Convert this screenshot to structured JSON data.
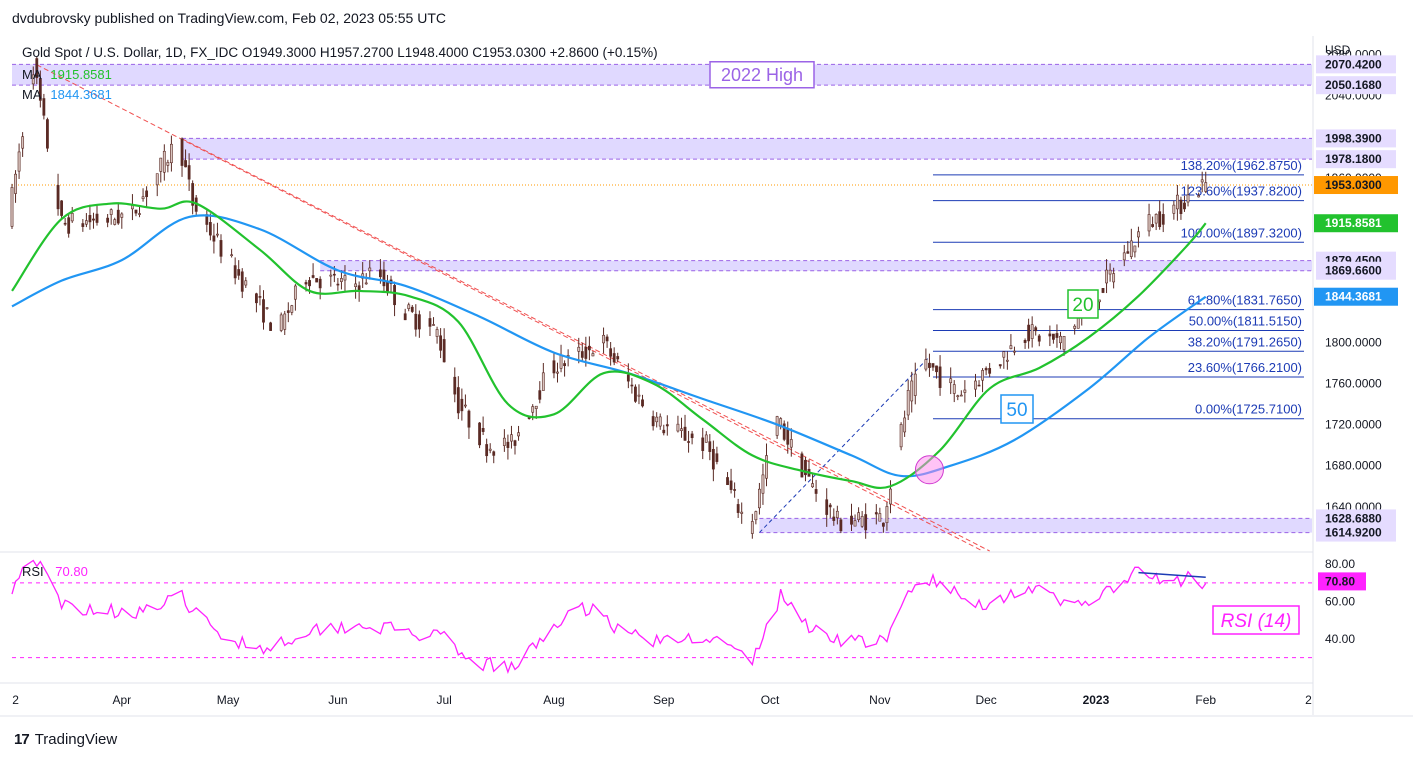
{
  "publisher_line": "dvdubrovsky published on TradingView.com, Feb 02, 2023 05:55 UTC",
  "symbol_line": "Gold Spot / U.S. Dollar, 1D, FX_IDC  O1949.3000  H1957.2700  L1948.4000  C1953.0300  +2.8600 (+0.15%)",
  "logo_text": "TradingView",
  "colors": {
    "ma20": "#22c22e",
    "ma50": "#2196f3",
    "rsi": "#ff22ff",
    "candle_up": "#d9c4bf",
    "candle_down": "#5a2a24",
    "zone": "#d6ccff",
    "zone_label": "#9b63e6",
    "fib": "#1c3bb5",
    "trend": "#f05050",
    "price": "#ff9800"
  },
  "legend": {
    "ma1_label": "MA",
    "ma1_value": "1915.8581",
    "ma2_label": "MA",
    "ma2_value": "1844.3681",
    "rsi_label": "RSI",
    "rsi_value": "70.80"
  },
  "annotations": {
    "zone_2022_high": "2022 High",
    "ma20_tag": "20",
    "ma50_tag": "50",
    "rsi_tag": "RSI (14)"
  },
  "chart_data": {
    "type": "candlestick",
    "price_axis_title": "USD",
    "price_ticks": [
      "1640.0000",
      "1680.0000",
      "1720.0000",
      "1760.0000",
      "1800.0000",
      "1840.0000",
      "1880.0000",
      "1920.0000",
      "1960.0000",
      "2000.0000",
      "2040.0000",
      "2080.0000"
    ],
    "price_range": [
      1597,
      2098
    ],
    "date_range": [
      "2022-03-01",
      "2023-03-03"
    ],
    "date_ticks": [
      {
        "label": "2",
        "date": "2022-03-02"
      },
      {
        "label": "Apr",
        "date": "2022-04-01"
      },
      {
        "label": "May",
        "date": "2022-05-01"
      },
      {
        "label": "Jun",
        "date": "2022-06-01"
      },
      {
        "label": "Jul",
        "date": "2022-07-01"
      },
      {
        "label": "Aug",
        "date": "2022-08-01"
      },
      {
        "label": "Sep",
        "date": "2022-09-01"
      },
      {
        "label": "Oct",
        "date": "2022-10-01"
      },
      {
        "label": "Nov",
        "date": "2022-11-01"
      },
      {
        "label": "Dec",
        "date": "2022-12-01"
      },
      {
        "label": "2023",
        "date": "2023-01-01"
      },
      {
        "label": "Feb",
        "date": "2023-02-01"
      },
      {
        "label": "2",
        "date": "2023-03-02"
      }
    ],
    "price_path": [
      [
        "2022-03-01",
        1920
      ],
      [
        "2022-03-08",
        2070
      ],
      [
        "2022-03-16",
        1915
      ],
      [
        "2022-03-29",
        1920
      ],
      [
        "2022-04-05",
        1925
      ],
      [
        "2022-04-18",
        1998
      ],
      [
        "2022-04-22",
        1935
      ],
      [
        "2022-05-04",
        1870
      ],
      [
        "2022-05-16",
        1810
      ],
      [
        "2022-05-24",
        1865
      ],
      [
        "2022-06-06",
        1855
      ],
      [
        "2022-06-13",
        1870
      ],
      [
        "2022-06-21",
        1830
      ],
      [
        "2022-06-30",
        1810
      ],
      [
        "2022-07-06",
        1740
      ],
      [
        "2022-07-14",
        1700
      ],
      [
        "2022-07-21",
        1700
      ],
      [
        "2022-08-01",
        1775
      ],
      [
        "2022-08-10",
        1790
      ],
      [
        "2022-08-16",
        1800
      ],
      [
        "2022-08-25",
        1750
      ],
      [
        "2022-09-01",
        1720
      ],
      [
        "2022-09-14",
        1700
      ],
      [
        "2022-09-26",
        1620
      ],
      [
        "2022-09-28",
        1640
      ],
      [
        "2022-10-04",
        1725
      ],
      [
        "2022-10-13",
        1665
      ],
      [
        "2022-10-21",
        1625
      ],
      [
        "2022-11-03",
        1630
      ],
      [
        "2022-11-10",
        1745
      ],
      [
        "2022-11-15",
        1780
      ],
      [
        "2022-11-24",
        1750
      ],
      [
        "2022-12-05",
        1780
      ],
      [
        "2022-12-13",
        1810
      ],
      [
        "2022-12-23",
        1800
      ],
      [
        "2023-01-03",
        1850
      ],
      [
        "2023-01-16",
        1915
      ],
      [
        "2023-01-26",
        1935
      ],
      [
        "2023-02-01",
        1953
      ]
    ],
    "last_close": 1953.03,
    "ma_series": [
      {
        "name": "MA",
        "period": 20,
        "last": 1915.8581,
        "points": [
          [
            "2022-03-01",
            1850
          ],
          [
            "2022-03-15",
            1920
          ],
          [
            "2022-03-29",
            1935
          ],
          [
            "2022-04-12",
            1930
          ],
          [
            "2022-04-22",
            1935
          ],
          [
            "2022-05-10",
            1890
          ],
          [
            "2022-05-24",
            1850
          ],
          [
            "2022-06-07",
            1850
          ],
          [
            "2022-06-21",
            1845
          ],
          [
            "2022-07-05",
            1820
          ],
          [
            "2022-07-19",
            1740
          ],
          [
            "2022-08-01",
            1730
          ],
          [
            "2022-08-15",
            1770
          ],
          [
            "2022-08-29",
            1760
          ],
          [
            "2022-09-12",
            1725
          ],
          [
            "2022-09-26",
            1690
          ],
          [
            "2022-10-10",
            1675
          ],
          [
            "2022-10-24",
            1665
          ],
          [
            "2022-11-04",
            1660
          ],
          [
            "2022-11-18",
            1695
          ],
          [
            "2022-12-02",
            1755
          ],
          [
            "2022-12-16",
            1775
          ],
          [
            "2022-12-30",
            1805
          ],
          [
            "2023-01-13",
            1845
          ],
          [
            "2023-01-27",
            1895
          ],
          [
            "2023-02-01",
            1915.86
          ]
        ]
      },
      {
        "name": "MA",
        "period": 50,
        "last": 1844.3681,
        "points": [
          [
            "2022-03-01",
            1835
          ],
          [
            "2022-03-15",
            1860
          ],
          [
            "2022-04-01",
            1880
          ],
          [
            "2022-04-20",
            1922
          ],
          [
            "2022-05-10",
            1910
          ],
          [
            "2022-06-01",
            1870
          ],
          [
            "2022-06-20",
            1855
          ],
          [
            "2022-07-11",
            1825
          ],
          [
            "2022-08-01",
            1790
          ],
          [
            "2022-08-22",
            1770
          ],
          [
            "2022-09-12",
            1745
          ],
          [
            "2022-10-03",
            1720
          ],
          [
            "2022-10-24",
            1690
          ],
          [
            "2022-11-07",
            1670
          ],
          [
            "2022-11-21",
            1680
          ],
          [
            "2022-12-09",
            1705
          ],
          [
            "2022-12-30",
            1755
          ],
          [
            "2023-01-16",
            1805
          ],
          [
            "2023-02-01",
            1844.37
          ]
        ]
      }
    ],
    "zones": [
      {
        "from": 2050.168,
        "to": 2070.42,
        "label": "2022 High"
      },
      {
        "from": 1978.18,
        "to": 1998.39
      },
      {
        "from": 1869.66,
        "to": 1879.45
      },
      {
        "from": 1614.92,
        "to": 1628.688
      }
    ],
    "zone_levels": [
      "2070.4200",
      "2050.1680",
      "1998.3900",
      "1978.1800",
      "1879.4500",
      "1869.6600",
      "1628.6880",
      "1614.9200"
    ],
    "fibonacci": [
      {
        "label": "138.20%(1962.8750)",
        "value": 1962.875
      },
      {
        "label": "123.60%(1937.8200)",
        "value": 1937.82
      },
      {
        "label": "100.00%(1897.3200)",
        "value": 1897.32
      },
      {
        "label": "61.80%(1831.7650)",
        "value": 1831.765
      },
      {
        "label": "50.00%(1811.5150)",
        "value": 1811.515
      },
      {
        "label": "38.20%(1791.2650)",
        "value": 1791.265
      },
      {
        "label": "23.60%(1766.2100)",
        "value": 1766.21
      },
      {
        "label": "0.00%(1725.7100)",
        "value": 1725.71
      }
    ],
    "fib_anchor": [
      [
        "2022-09-28",
        1614.92
      ],
      [
        "2022-11-15",
        1786
      ]
    ],
    "trendlines": [
      [
        [
          "2022-03-08",
          2070
        ],
        [
          "2022-11-30",
          1597
        ]
      ],
      [
        [
          "2022-04-18",
          1998
        ],
        [
          "2022-12-02",
          1597
        ]
      ]
    ],
    "price_labels": [
      {
        "value": 1953.03,
        "text": "1953.0300",
        "style": "orange"
      },
      {
        "value": 1915.8581,
        "text": "1915.8581",
        "style": "green"
      },
      {
        "value": 1844.3681,
        "text": "1844.3681",
        "style": "blue"
      }
    ],
    "rsi": {
      "period": 14,
      "last": 70.8,
      "range": [
        18,
        86
      ],
      "ticks": [
        "40.00",
        "60.00",
        "80.00"
      ],
      "upper": 70,
      "lower": 30,
      "label": "70.80",
      "divergence": [
        [
          "2023-01-13",
          75.5
        ],
        [
          "2023-02-01",
          73
        ]
      ],
      "points": [
        [
          "2022-03-01",
          68
        ],
        [
          "2022-03-07",
          85
        ],
        [
          "2022-03-15",
          58
        ],
        [
          "2022-03-29",
          55
        ],
        [
          "2022-04-08",
          55
        ],
        [
          "2022-04-18",
          62
        ],
        [
          "2022-04-28",
          42
        ],
        [
          "2022-05-12",
          35
        ],
        [
          "2022-05-24",
          45
        ],
        [
          "2022-06-07",
          48
        ],
        [
          "2022-06-17",
          45
        ],
        [
          "2022-07-01",
          40
        ],
        [
          "2022-07-07",
          28
        ],
        [
          "2022-07-21",
          24
        ],
        [
          "2022-08-01",
          48
        ],
        [
          "2022-08-12",
          58
        ],
        [
          "2022-08-19",
          45
        ],
        [
          "2022-09-01",
          38
        ],
        [
          "2022-09-13",
          42
        ],
        [
          "2022-09-26",
          28
        ],
        [
          "2022-10-04",
          63
        ],
        [
          "2022-10-13",
          45
        ],
        [
          "2022-10-21",
          40
        ],
        [
          "2022-11-03",
          38
        ],
        [
          "2022-11-09",
          65
        ],
        [
          "2022-11-15",
          72
        ],
        [
          "2022-11-28",
          58
        ],
        [
          "2022-12-05",
          62
        ],
        [
          "2022-12-13",
          68
        ],
        [
          "2022-12-23",
          58
        ],
        [
          "2023-01-03",
          63
        ],
        [
          "2023-01-13",
          76
        ],
        [
          "2023-01-20",
          70
        ],
        [
          "2023-01-27",
          72
        ],
        [
          "2023-01-31",
          65
        ],
        [
          "2023-02-01",
          70.8
        ]
      ]
    }
  }
}
